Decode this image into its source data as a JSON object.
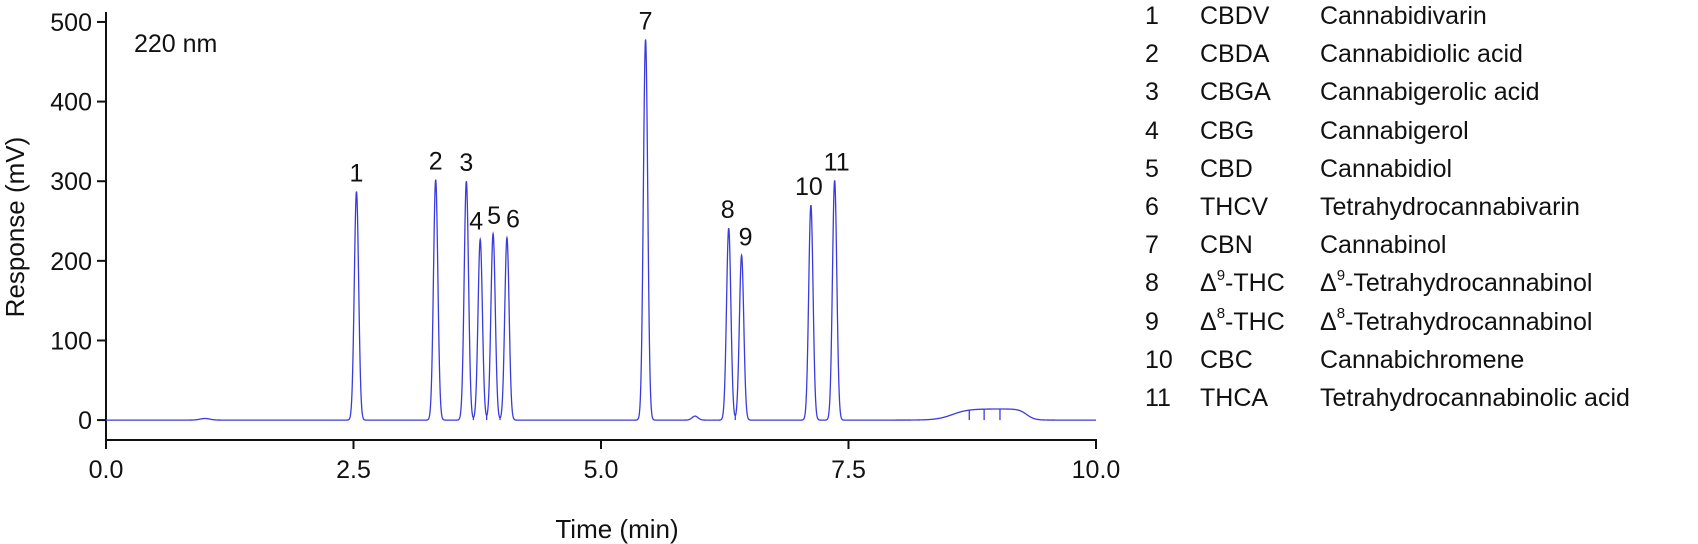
{
  "chart_data": {
    "type": "line",
    "title": "",
    "annotation": "220 nm",
    "xlabel": "Time (min)",
    "ylabel": "Response (mV)",
    "xlim": [
      0,
      10
    ],
    "ylim": [
      -25,
      510
    ],
    "xticks": [
      0.0,
      2.5,
      5.0,
      7.5,
      10.0
    ],
    "xtick_labels": [
      "0.0",
      "2.5",
      "5.0",
      "7.5",
      "10.0"
    ],
    "yticks": [
      0,
      100,
      200,
      300,
      400,
      500
    ],
    "ytick_labels": [
      "0",
      "100",
      "200",
      "300",
      "400",
      "500"
    ],
    "line_color": "#3b3bdc",
    "grid": false,
    "peaks": [
      {
        "label": "1",
        "time": 2.53,
        "height": 287
      },
      {
        "label": "2",
        "time": 3.33,
        "height": 302
      },
      {
        "label": "3",
        "time": 3.64,
        "height": 300
      },
      {
        "label": "4",
        "time": 3.78,
        "height": 227
      },
      {
        "label": "5",
        "time": 3.91,
        "height": 234
      },
      {
        "label": "6",
        "time": 4.05,
        "height": 229
      },
      {
        "label": "7",
        "time": 5.45,
        "height": 478
      },
      {
        "label": "8",
        "time": 6.29,
        "height": 241
      },
      {
        "label": "9",
        "time": 6.42,
        "height": 207
      },
      {
        "label": "10",
        "time": 7.12,
        "height": 270
      },
      {
        "label": "11",
        "time": 7.36,
        "height": 301
      }
    ],
    "legend": [
      {
        "num": "1",
        "abbr": "CBDV",
        "name": "Cannabidivarin"
      },
      {
        "num": "2",
        "abbr": "CBDA",
        "name": "Cannabidiolic acid"
      },
      {
        "num": "3",
        "abbr": "CBGA",
        "name": "Cannabigerolic acid"
      },
      {
        "num": "4",
        "abbr": "CBG",
        "name": "Cannabigerol"
      },
      {
        "num": "5",
        "abbr": "CBD",
        "name": "Cannabidiol"
      },
      {
        "num": "6",
        "abbr": "THCV",
        "name": "Tetrahydrocannabivarin"
      },
      {
        "num": "7",
        "abbr": "CBN",
        "name": "Cannabinol"
      },
      {
        "num": "8",
        "abbr_prefix": "Δ",
        "abbr_sup": "9",
        "abbr_suffix": "-THC",
        "name_prefix": "Δ",
        "name_sup": "9",
        "name_suffix": "-Tetrahydrocannabinol"
      },
      {
        "num": "9",
        "abbr_prefix": "Δ",
        "abbr_sup": "8",
        "abbr_suffix": "-THC",
        "name_prefix": "Δ",
        "name_sup": "8",
        "name_suffix": "-Tetrahydrocannabinol"
      },
      {
        "num": "10",
        "abbr": "CBC",
        "name": "Cannabichromene"
      },
      {
        "num": "11",
        "abbr": "THCA",
        "name": "Tetrahydrocannabinolic acid"
      }
    ]
  }
}
